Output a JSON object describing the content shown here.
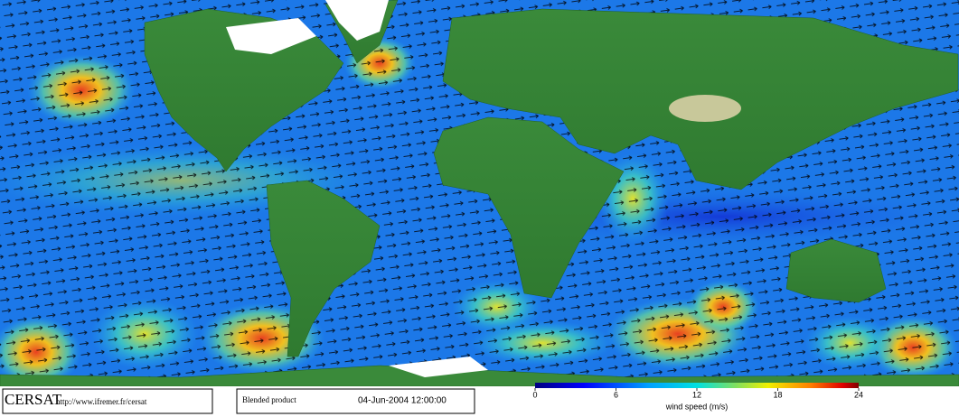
{
  "logo": "CERSAT",
  "url": "http://www.ifremer.fr/cersat",
  "product": "Blended product",
  "date": "04-Jun-2004 12:00:00",
  "colorbar": {
    "label": "wind speed (m/s)",
    "lim": [
      0,
      24
    ],
    "ticks": [
      0,
      6,
      12,
      18,
      24
    ]
  }
}
